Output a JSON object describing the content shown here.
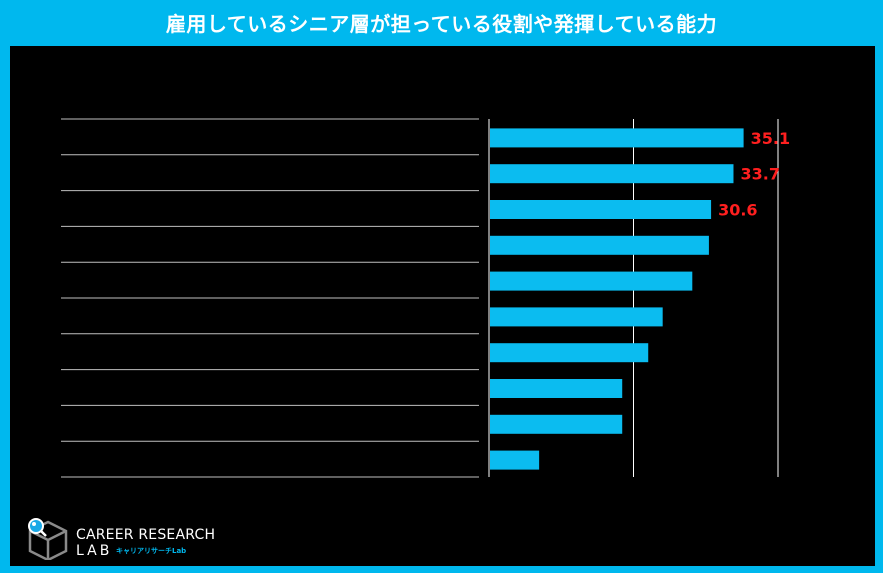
{
  "header": {
    "title": "雇用しているシニア層が担っている役割や発揮している能力"
  },
  "colors": {
    "bar": "#0bbcf0",
    "label_highlight": "#ff1f1f",
    "frame": "#00b8ee",
    "background": "#000000"
  },
  "chart_data": {
    "type": "bar",
    "orientation": "horizontal",
    "categories": [
      "",
      "",
      "",
      "",
      "",
      "",
      "",
      "",
      "",
      ""
    ],
    "values": [
      35.1,
      33.7,
      30.6,
      30.3,
      28.0,
      23.9,
      21.9,
      18.3,
      18.3,
      6.8
    ],
    "data_labels": [
      "35.1",
      "33.7",
      "30.6",
      "",
      "",
      "",
      "",
      "",
      "",
      ""
    ],
    "xlim": [
      0,
      40
    ],
    "grid": true
  },
  "logo": {
    "icon": "cube-magnifier-icon",
    "brand_line1": "CAREER RESEARCH",
    "brand_line2": "LAB",
    "brand_sub": "キャリアリサーチLab"
  }
}
